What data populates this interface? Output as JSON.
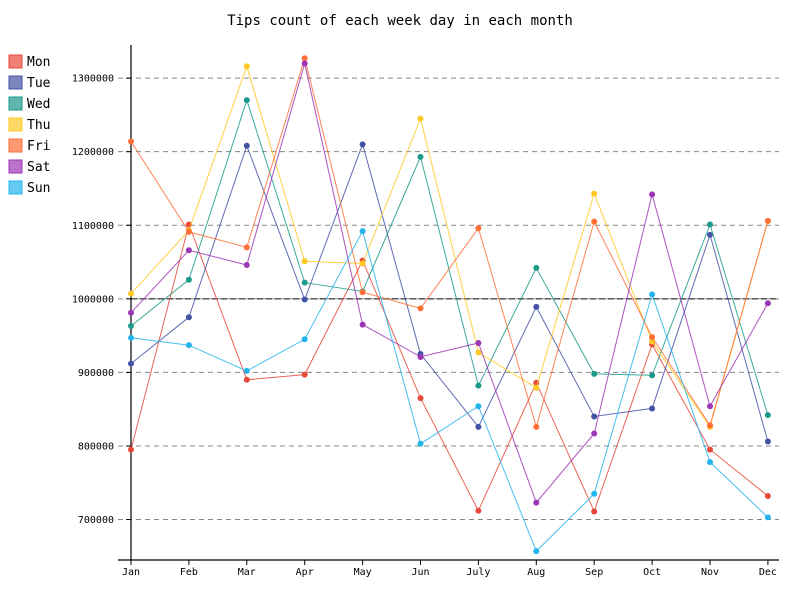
{
  "chart_data": {
    "type": "line",
    "title": "Tips count of each week day in each month",
    "xlabel": "",
    "ylabel": "",
    "categories": [
      "Jan",
      "Feb",
      "Mar",
      "Apr",
      "May",
      "Jun",
      "July",
      "Aug",
      "Sep",
      "Oct",
      "Nov",
      "Dec"
    ],
    "ylim": [
      645000,
      1345000
    ],
    "yticks": [
      700000,
      800000,
      900000,
      1000000,
      1100000,
      1200000,
      1300000
    ],
    "ytick_labels": [
      "700000",
      "800000",
      "900000",
      "1000000",
      "1100000",
      "1200000",
      "1300000"
    ],
    "reference_line": 1000000,
    "grid": "horizontal-dashed",
    "legend_position": "left",
    "series": [
      {
        "name": "Mon",
        "color": "#e8493a",
        "values": [
          795000,
          1101000,
          890000,
          897000,
          1052000,
          865000,
          712000,
          886000,
          711000,
          938000,
          795000,
          732000
        ]
      },
      {
        "name": "Tue",
        "color": "#4452a4",
        "values": [
          912000,
          975000,
          1208000,
          999000,
          1210000,
          925000,
          826000,
          989000,
          840000,
          851000,
          1087000,
          806000
        ]
      },
      {
        "name": "Wed",
        "color": "#1a9a8a",
        "values": [
          963000,
          1026000,
          1270000,
          1022000,
          1010000,
          1193000,
          882000,
          1042000,
          898000,
          896000,
          1101000,
          842000
        ]
      },
      {
        "name": "Thu",
        "color": "#ffc923",
        "values": [
          1007000,
          1093000,
          1316000,
          1051000,
          1048000,
          1245000,
          927000,
          879000,
          1143000,
          942000,
          826000,
          1106000
        ]
      },
      {
        "name": "Fri",
        "color": "#ff6e36",
        "values": [
          1214000,
          1091000,
          1070000,
          1327000,
          1009000,
          987000,
          1096000,
          826000,
          1105000,
          948000,
          828000,
          1106000
        ]
      },
      {
        "name": "Sat",
        "color": "#9c36b5",
        "values": [
          981000,
          1066000,
          1046000,
          1320000,
          965000,
          921000,
          940000,
          723000,
          817000,
          1142000,
          854000,
          994000
        ]
      },
      {
        "name": "Sun",
        "color": "#23b4ec",
        "values": [
          947000,
          937000,
          902000,
          945000,
          1092000,
          803000,
          854000,
          657000,
          735000,
          1006000,
          778000,
          703000
        ]
      }
    ]
  }
}
